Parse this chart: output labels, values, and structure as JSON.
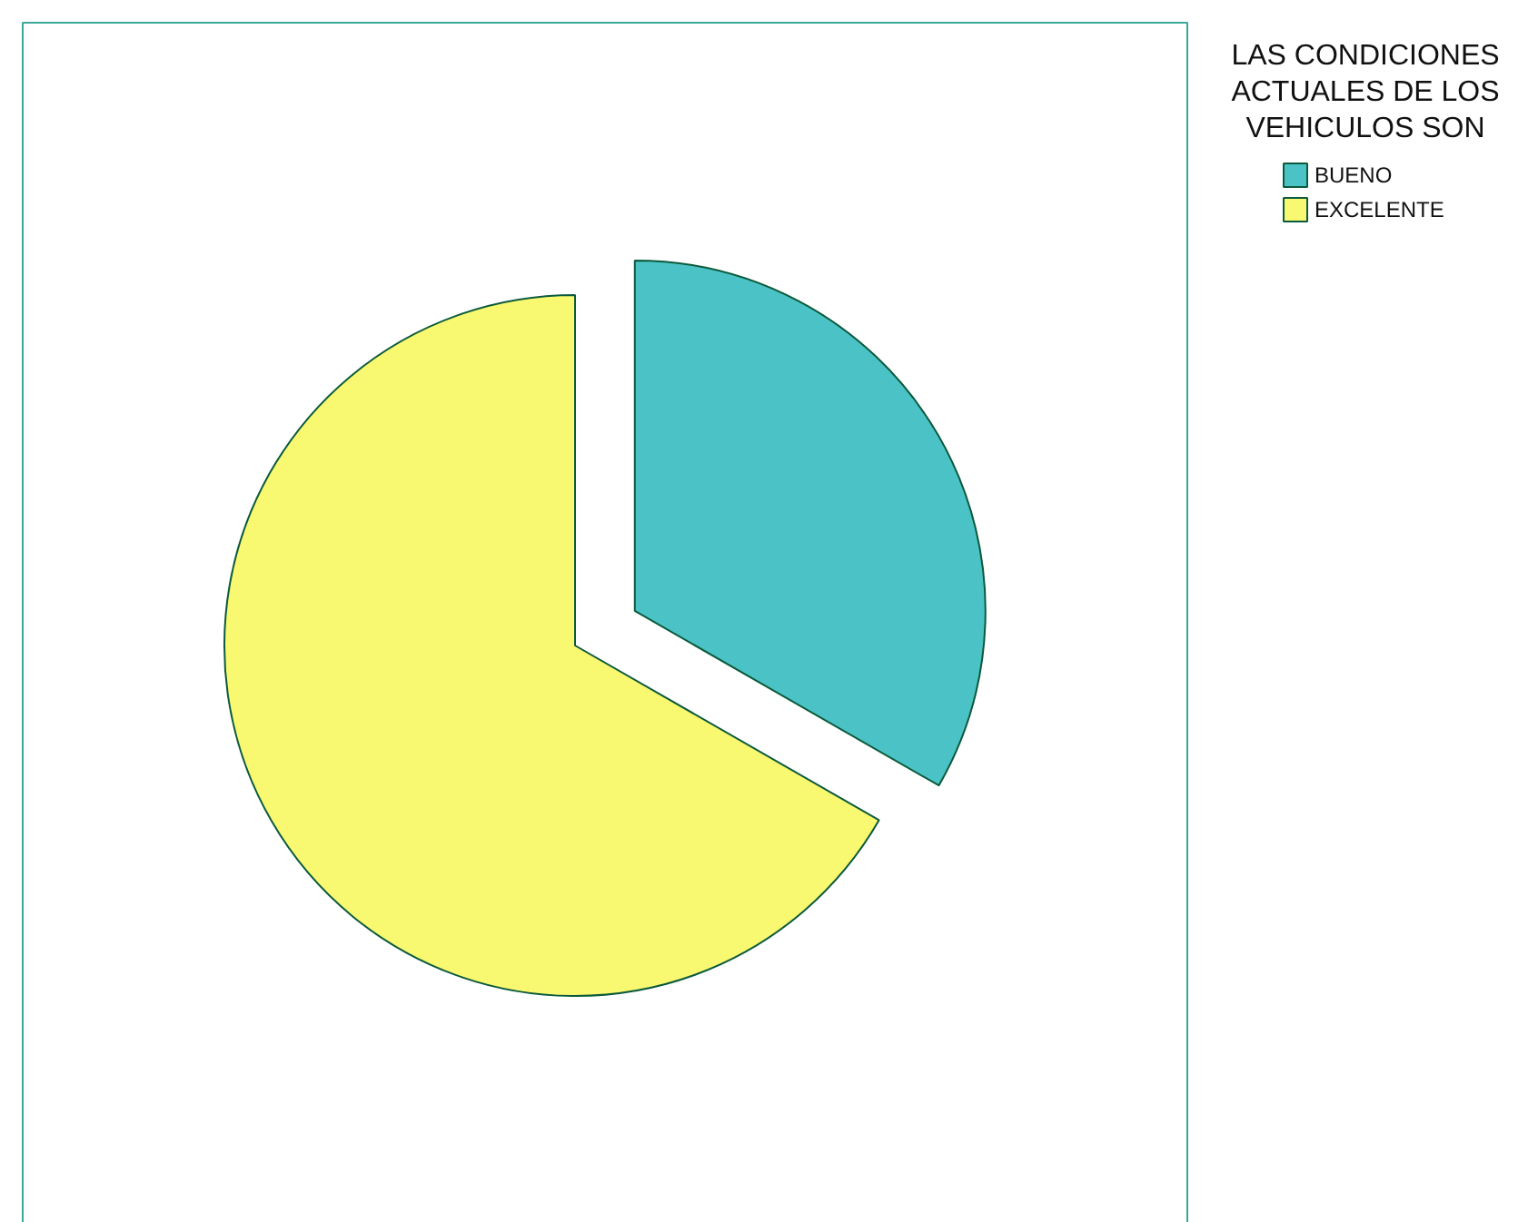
{
  "chart_data": {
    "type": "pie",
    "legend_title": "LAS CONDICIONES ACTUALES DE LOS VEHICULOS SON",
    "categories": [
      "BUENO",
      "EXCELENTE"
    ],
    "values": [
      33.3,
      66.7
    ],
    "colors": [
      "#4bc3c6",
      "#f9f871"
    ],
    "legend": "right"
  }
}
